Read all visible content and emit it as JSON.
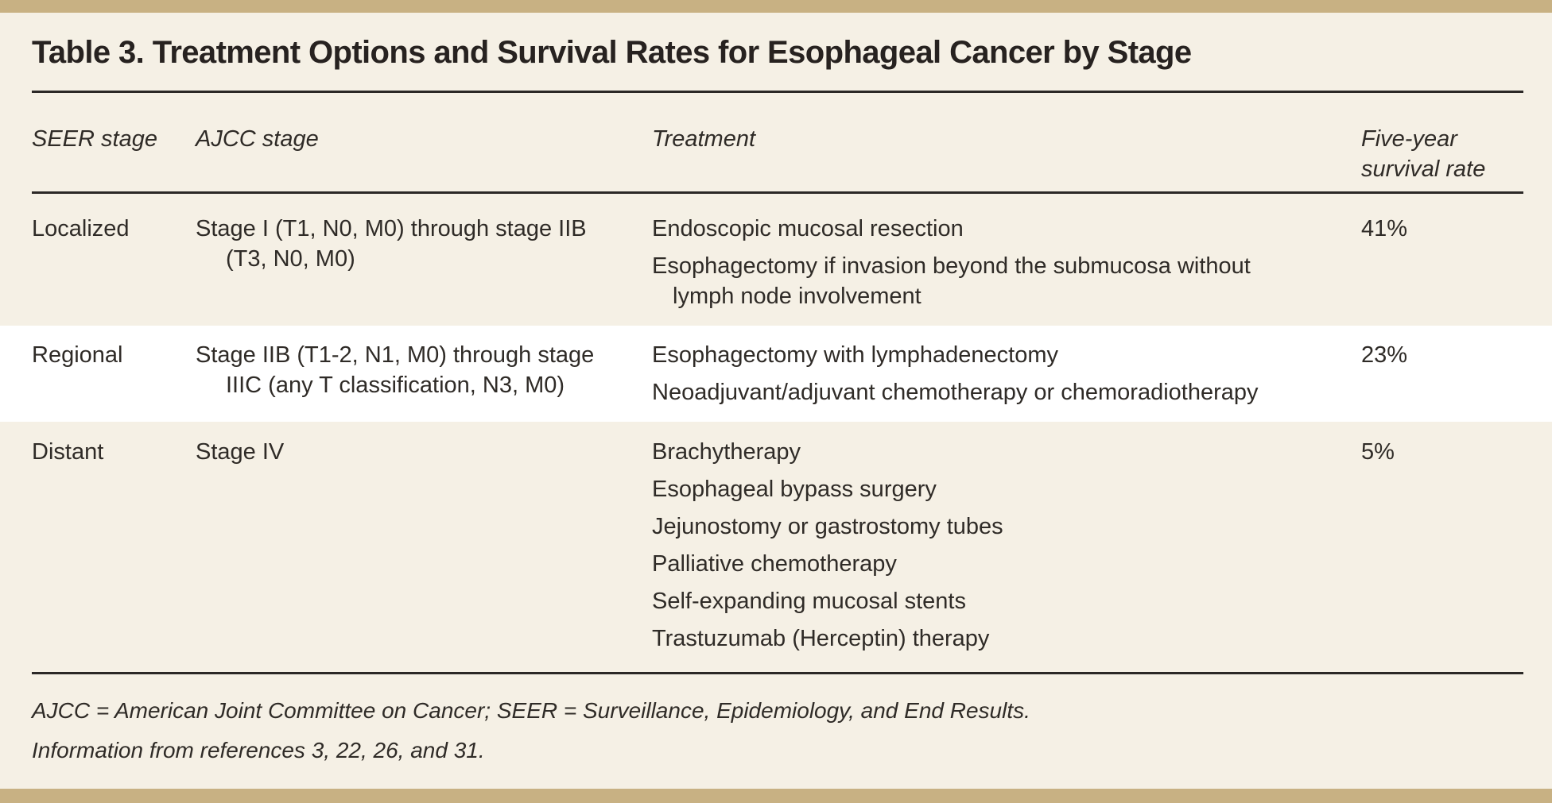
{
  "page": {
    "title": "Table 3. Treatment Options and Survival Rates for Esophageal Cancer by Stage"
  },
  "table": {
    "columns": [
      {
        "id": "seer",
        "label_lines": [
          "SEER stage"
        ]
      },
      {
        "id": "ajcc",
        "label_lines": [
          "AJCC stage"
        ]
      },
      {
        "id": "treatment",
        "label_lines": [
          "Treatment"
        ]
      },
      {
        "id": "survival",
        "label_lines": [
          "Five-year",
          "survival rate"
        ]
      }
    ],
    "rows": [
      {
        "seer": "Localized",
        "ajcc_lines": [
          {
            "text": "Stage I (T1, N0, M0) through stage IIB",
            "indent": false
          },
          {
            "text": "(T3, N0, M0)",
            "indent": true
          }
        ],
        "treatments": [
          {
            "lines": [
              {
                "text": "Endoscopic mucosal resection",
                "indent": false
              }
            ]
          },
          {
            "lines": [
              {
                "text": "Esophagectomy if invasion beyond the submucosa without",
                "indent": false
              },
              {
                "text": "lymph node involvement",
                "indent": true
              }
            ]
          }
        ],
        "survival": "41%",
        "highlighted": false
      },
      {
        "seer": "Regional",
        "ajcc_lines": [
          {
            "text": "Stage IIB (T1-2, N1, M0) through stage",
            "indent": false
          },
          {
            "text": "IIIC (any T classification, N3, M0)",
            "indent": true
          }
        ],
        "treatments": [
          {
            "lines": [
              {
                "text": "Esophagectomy with lymphadenectomy",
                "indent": false
              }
            ]
          },
          {
            "lines": [
              {
                "text": "Neoadjuvant/adjuvant chemotherapy or chemoradiotherapy",
                "indent": false
              }
            ]
          }
        ],
        "survival": "23%",
        "highlighted": true
      },
      {
        "seer": "Distant",
        "ajcc_lines": [
          {
            "text": "Stage IV",
            "indent": false
          }
        ],
        "treatments": [
          {
            "lines": [
              {
                "text": "Brachytherapy",
                "indent": false
              }
            ]
          },
          {
            "lines": [
              {
                "text": "Esophageal bypass surgery",
                "indent": false
              }
            ]
          },
          {
            "lines": [
              {
                "text": "Jejunostomy or gastrostomy tubes",
                "indent": false
              }
            ]
          },
          {
            "lines": [
              {
                "text": "Palliative chemotherapy",
                "indent": false
              }
            ]
          },
          {
            "lines": [
              {
                "text": "Self-expanding mucosal stents",
                "indent": false
              }
            ]
          },
          {
            "lines": [
              {
                "text": "Trastuzumab (Herceptin) therapy",
                "indent": false
              }
            ]
          }
        ],
        "survival": "5%",
        "highlighted": false
      }
    ]
  },
  "footnotes": [
    "AJCC = American Joint Committee on Cancer; SEER = Surveillance, Epidemiology, and End Results.",
    "Information from references 3, 22, 26, and 31."
  ],
  "colors": {
    "accent_bar": "#c8b183",
    "background": "#f5f0e5",
    "highlight_row": "#ffffff",
    "rule": "#2b2826",
    "text": "#2f2b27",
    "title": "#272220"
  }
}
